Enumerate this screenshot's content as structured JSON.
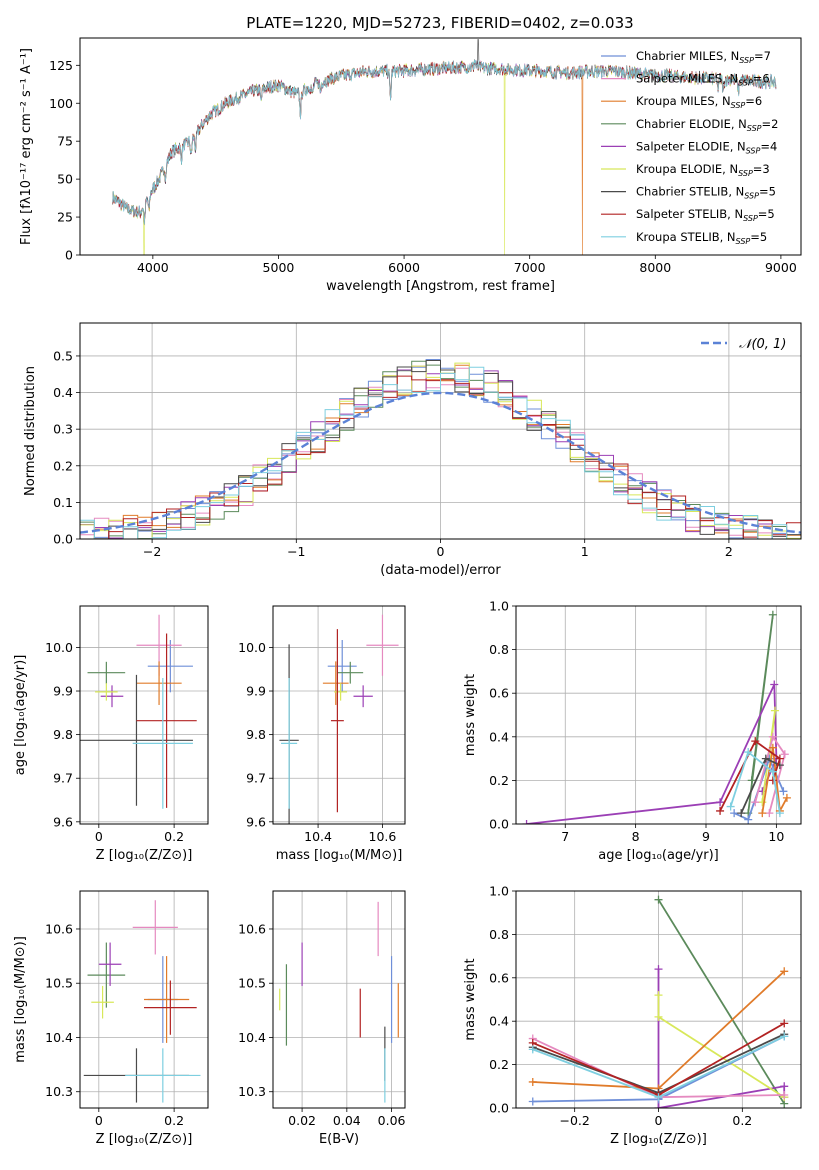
{
  "figure_title": "PLATE=1220, MJD=52723, FIBERID=0402, z=0.033",
  "colors": {
    "chabrier_miles": "#6f8fd8",
    "salpeter_miles": "#e58ac0",
    "kroupa_miles": "#e07b2a",
    "chabrier_elodie": "#5b8a5b",
    "salpeter_elodie": "#9b3fb5",
    "kroupa_elodie": "#d8e85a",
    "chabrier_stelib": "#4a4a4a",
    "salpeter_stelib": "#b22222",
    "kroupa_stelib": "#7ecfe0",
    "normal_curve": "#5b82d6"
  },
  "chart_data": [
    {
      "id": "spectrum",
      "type": "line",
      "xlabel": "wavelength [Angstrom, rest frame]",
      "ylabel": "Flux [fλ10⁻¹⁷ erg cm⁻² s⁻¹ A⁻¹]",
      "xlim": [
        3420,
        9160
      ],
      "ylim": [
        0,
        143
      ],
      "xticks": [
        4000,
        5000,
        6000,
        7000,
        8000,
        9000
      ],
      "yticks": [
        0,
        25,
        50,
        75,
        100,
        125
      ],
      "legend_position": "top-right",
      "legend": [
        "Chabrier MILES, N_SSP=7",
        "Salpeter MILES, N_SSP=6",
        "Kroupa MILES, N_SSP=6",
        "Chabrier ELODIE, N_SSP=2",
        "Salpeter ELODIE, N_SSP=4",
        "Kroupa ELODIE, N_SSP=3",
        "Chabrier STELIB, N_SSP=5",
        "Salpeter STELIB, N_SSP=5",
        "Kroupa STELIB, N_SSP=5"
      ],
      "continuum_anchors": [
        [
          3680,
          38
        ],
        [
          3800,
          30
        ],
        [
          3900,
          28
        ],
        [
          3960,
          38
        ],
        [
          4050,
          50
        ],
        [
          4150,
          68
        ],
        [
          4300,
          75
        ],
        [
          4450,
          92
        ],
        [
          4600,
          101
        ],
        [
          4800,
          108
        ],
        [
          5000,
          112
        ],
        [
          5150,
          106
        ],
        [
          5300,
          113
        ],
        [
          5500,
          118
        ],
        [
          5700,
          121
        ],
        [
          5900,
          121
        ],
        [
          6100,
          122
        ],
        [
          6300,
          123
        ],
        [
          6500,
          124
        ],
        [
          6700,
          123
        ],
        [
          6900,
          122
        ],
        [
          7100,
          121
        ],
        [
          7300,
          120
        ],
        [
          7500,
          121
        ],
        [
          7700,
          121
        ],
        [
          7900,
          119
        ],
        [
          8100,
          118
        ],
        [
          8300,
          117
        ],
        [
          8500,
          116
        ],
        [
          8700,
          115
        ],
        [
          8900,
          114
        ]
      ],
      "absorption_lines": [
        [
          3934,
          -12
        ],
        [
          3969,
          -10
        ],
        [
          4102,
          -8
        ],
        [
          4227,
          -8
        ],
        [
          4305,
          -10
        ],
        [
          4340,
          -10
        ],
        [
          4861,
          -8
        ],
        [
          5175,
          -14
        ],
        [
          5270,
          -6
        ],
        [
          5335,
          -6
        ],
        [
          5892,
          -18
        ],
        [
          6563,
          4
        ],
        [
          8498,
          -6
        ],
        [
          8542,
          -8
        ],
        [
          8662,
          -7
        ]
      ],
      "emission_spikes": [
        [
          6590,
          142
        ]
      ],
      "dropouts": [
        {
          "x": 3930,
          "series": "kroupa_elodie"
        },
        {
          "x": 6800,
          "series": "kroupa_elodie"
        },
        {
          "x": 7420,
          "series": "kroupa_miles"
        }
      ],
      "start_x": 3680,
      "end_x": 8960
    },
    {
      "id": "residual_hist",
      "type": "line",
      "xlabel": "(data-model)/error",
      "ylabel": "Normed distribution",
      "xlim": [
        -2.5,
        2.5
      ],
      "ylim": [
        0,
        0.59
      ],
      "xticks": [
        -2,
        -1,
        0,
        1,
        2
      ],
      "yticks": [
        0.0,
        0.1,
        0.2,
        0.3,
        0.4,
        0.5
      ],
      "legend_position": "top-right",
      "legend": [
        "𝒩(0, 1)"
      ],
      "bin_width": 0.1,
      "grid": true
    },
    {
      "id": "age_vs_Z",
      "type": "scatter",
      "xlabel": "Z [log₁₀(Z/Z⊙)]",
      "ylabel": "age  [log₁₀(age/yr)]",
      "xlim": [
        -0.05,
        0.29
      ],
      "ylim": [
        9.595,
        10.095
      ],
      "xticks": [
        0.0,
        0.2
      ],
      "yticks": [
        9.6,
        9.7,
        9.8,
        9.9,
        10.0
      ],
      "points": [
        {
          "series": "chabrier_miles",
          "x": 0.19,
          "y": 9.957,
          "xerr": 0.06,
          "yerr": 0.06
        },
        {
          "series": "salpeter_miles",
          "x": 0.16,
          "y": 10.005,
          "xerr": 0.06,
          "yerr": 0.07
        },
        {
          "series": "kroupa_miles",
          "x": 0.16,
          "y": 9.918,
          "xerr": 0.06,
          "yerr": 0.05
        },
        {
          "series": "chabrier_elodie",
          "x": 0.02,
          "y": 9.942,
          "xerr": 0.05,
          "yerr": 0.025
        },
        {
          "series": "salpeter_elodie",
          "x": 0.035,
          "y": 9.888,
          "xerr": 0.03,
          "yerr": 0.025
        },
        {
          "series": "kroupa_elodie",
          "x": 0.02,
          "y": 9.898,
          "xerr": 0.03,
          "yerr": 0.02
        },
        {
          "series": "chabrier_stelib",
          "x": 0.1,
          "y": 9.787,
          "xerr": 0.15,
          "yerr": 0.15
        },
        {
          "series": "salpeter_stelib",
          "x": 0.18,
          "y": 9.832,
          "xerr": 0.08,
          "yerr": 0.2
        },
        {
          "series": "kroupa_stelib",
          "x": 0.17,
          "y": 9.78,
          "xerr": 0.08,
          "yerr": 0.15
        }
      ]
    },
    {
      "id": "age_vs_mass",
      "type": "scatter",
      "xlabel": "mass [log₁₀(M/M⊙)]",
      "ylabel": "",
      "xlim": [
        10.26,
        10.67
      ],
      "ylim": [
        9.595,
        10.095
      ],
      "xticks": [
        10.4,
        10.6
      ],
      "yticks": [
        9.6,
        9.7,
        9.8,
        9.9,
        10.0
      ],
      "points": [
        {
          "series": "chabrier_miles",
          "x": 10.475,
          "y": 9.957,
          "xerr": 0.045,
          "yerr": 0.06
        },
        {
          "series": "salpeter_miles",
          "x": 10.6,
          "y": 10.005,
          "xerr": 0.05,
          "yerr": 0.07
        },
        {
          "series": "kroupa_miles",
          "x": 10.455,
          "y": 9.918,
          "xerr": 0.04,
          "yerr": 0.05
        },
        {
          "series": "chabrier_elodie",
          "x": 10.5,
          "y": 9.942,
          "xerr": 0.04,
          "yerr": 0.025
        },
        {
          "series": "salpeter_elodie",
          "x": 10.54,
          "y": 9.888,
          "xerr": 0.03,
          "yerr": 0.025
        },
        {
          "series": "kroupa_elodie",
          "x": 10.47,
          "y": 9.898,
          "xerr": 0.02,
          "yerr": 0.02
        },
        {
          "series": "chabrier_stelib",
          "x": 10.31,
          "y": 9.787,
          "xerr": 0.03,
          "yerr": 0.22
        },
        {
          "series": "salpeter_stelib",
          "x": 10.46,
          "y": 9.832,
          "xerr": 0.02,
          "yerr": 0.21
        },
        {
          "series": "kroupa_stelib",
          "x": 10.31,
          "y": 9.78,
          "xerr": 0.025,
          "yerr": 0.15
        }
      ]
    },
    {
      "id": "massweight_vs_age",
      "type": "line",
      "xlabel": "age  [log₁₀(age/yr)]",
      "ylabel": "mass weight",
      "xlim": [
        6.3,
        10.35
      ],
      "ylim": [
        0,
        1.0
      ],
      "xticks": [
        7,
        8,
        9,
        10
      ],
      "yticks": [
        0.0,
        0.2,
        0.4,
        0.6,
        0.8,
        1.0
      ],
      "series": [
        {
          "key": "chabrier_elodie",
          "x": [
            9.6,
            9.95,
            9.65
          ],
          "y": [
            0.05,
            0.96,
            0.2
          ]
        },
        {
          "key": "salpeter_elodie",
          "x": [
            6.45,
            9.2,
            9.97,
            10.0,
            9.8
          ],
          "y": [
            0.0,
            0.1,
            0.64,
            0.3,
            0.15
          ]
        },
        {
          "key": "kroupa_elodie",
          "x": [
            9.8,
            9.98,
            9.9
          ],
          "y": [
            0.1,
            0.52,
            0.3
          ]
        },
        {
          "key": "chabrier_miles",
          "x": [
            9.4,
            9.6,
            9.9,
            10.1
          ],
          "y": [
            0.05,
            0.02,
            0.3,
            0.15
          ]
        },
        {
          "key": "salpeter_miles",
          "x": [
            9.7,
            9.95,
            10.12,
            9.9
          ],
          "y": [
            0.1,
            0.4,
            0.32,
            0.05
          ]
        },
        {
          "key": "kroupa_miles",
          "x": [
            9.8,
            9.95,
            10.05,
            10.15
          ],
          "y": [
            0.05,
            0.35,
            0.06,
            0.12
          ]
        },
        {
          "key": "chabrier_stelib",
          "x": [
            9.5,
            9.85,
            10.05
          ],
          "y": [
            0.05,
            0.3,
            0.27
          ]
        },
        {
          "key": "salpeter_stelib",
          "x": [
            9.2,
            9.7,
            10.05,
            9.95
          ],
          "y": [
            0.06,
            0.38,
            0.3,
            0.2
          ]
        },
        {
          "key": "kroupa_stelib",
          "x": [
            9.35,
            9.6,
            9.95,
            10.05
          ],
          "y": [
            0.08,
            0.33,
            0.24,
            0.05
          ]
        }
      ]
    },
    {
      "id": "mass_vs_Z",
      "type": "scatter",
      "xlabel": "Z [log₁₀(Z/Z⊙)]",
      "ylabel": "mass [log₁₀(M/M⊙)]",
      "xlim": [
        -0.05,
        0.29
      ],
      "ylim": [
        10.27,
        10.67
      ],
      "xticks": [
        0.0,
        0.2
      ],
      "yticks": [
        10.3,
        10.4,
        10.5,
        10.6
      ],
      "points": [
        {
          "series": "chabrier_miles",
          "x": 0.17,
          "y": 10.47,
          "xerr": 0.04,
          "yerr": 0.08
        },
        {
          "series": "salpeter_miles",
          "x": 0.15,
          "y": 10.603,
          "xerr": 0.06,
          "yerr": 0.05
        },
        {
          "series": "kroupa_miles",
          "x": 0.18,
          "y": 10.47,
          "xerr": 0.06,
          "yerr": 0.08
        },
        {
          "series": "chabrier_elodie",
          "x": 0.02,
          "y": 10.515,
          "xerr": 0.05,
          "yerr": 0.06
        },
        {
          "series": "salpeter_elodie",
          "x": 0.03,
          "y": 10.535,
          "xerr": 0.03,
          "yerr": 0.04
        },
        {
          "series": "kroupa_elodie",
          "x": 0.01,
          "y": 10.465,
          "xerr": 0.03,
          "yerr": 0.03
        },
        {
          "series": "chabrier_stelib",
          "x": 0.1,
          "y": 10.33,
          "xerr": 0.14,
          "yerr": 0.05
        },
        {
          "series": "salpeter_stelib",
          "x": 0.19,
          "y": 10.455,
          "xerr": 0.07,
          "yerr": 0.05
        },
        {
          "series": "kroupa_stelib",
          "x": 0.17,
          "y": 10.33,
          "xerr": 0.1,
          "yerr": 0.05
        }
      ]
    },
    {
      "id": "mass_vs_ebv",
      "type": "scatter",
      "xlabel": "E(B-V)",
      "ylabel": "",
      "xlim": [
        0.007,
        0.066
      ],
      "ylim": [
        10.27,
        10.67
      ],
      "xticks": [
        0.02,
        0.04,
        0.06
      ],
      "yticks": [
        10.3,
        10.4,
        10.5,
        10.6
      ],
      "points": [
        {
          "series": "chabrier_miles",
          "x": 0.06,
          "y": 10.47,
          "xerr": 0,
          "yerr": 0.08
        },
        {
          "series": "salpeter_miles",
          "x": 0.054,
          "y": 10.6,
          "xerr": 0,
          "yerr": 0.05
        },
        {
          "series": "kroupa_miles",
          "x": 0.063,
          "y": 10.45,
          "xerr": 0,
          "yerr": 0.05
        },
        {
          "series": "chabrier_elodie",
          "x": 0.013,
          "y": 10.46,
          "xerr": 0,
          "yerr": 0.075
        },
        {
          "series": "salpeter_elodie",
          "x": 0.02,
          "y": 10.535,
          "xerr": 0,
          "yerr": 0.04
        },
        {
          "series": "kroupa_elodie",
          "x": 0.01,
          "y": 10.47,
          "xerr": 0,
          "yerr": 0.02
        },
        {
          "series": "chabrier_stelib",
          "x": 0.057,
          "y": 10.37,
          "xerr": 0,
          "yerr": 0.05
        },
        {
          "series": "salpeter_stelib",
          "x": 0.046,
          "y": 10.445,
          "xerr": 0,
          "yerr": 0.045
        },
        {
          "series": "kroupa_stelib",
          "x": 0.057,
          "y": 10.33,
          "xerr": 0,
          "yerr": 0.05
        }
      ]
    },
    {
      "id": "massweight_vs_Z",
      "type": "line",
      "xlabel": "Z [log₁₀(Z/Z⊙)]",
      "ylabel": "mass weight",
      "xlim": [
        -0.34,
        0.34
      ],
      "ylim": [
        0,
        1.0
      ],
      "xticks": [
        -0.2,
        0.0,
        0.2
      ],
      "yticks": [
        0.0,
        0.2,
        0.4,
        0.6,
        0.8,
        1.0
      ],
      "series": [
        {
          "key": "chabrier_elodie",
          "x": [
            0.0,
            0.3
          ],
          "y": [
            0.96,
            0.02
          ]
        },
        {
          "key": "salpeter_elodie",
          "x": [
            0.0,
            0.0,
            0.3,
            0.3
          ],
          "y": [
            0.64,
            0.0,
            0.1,
            0.05
          ]
        },
        {
          "key": "kroupa_elodie",
          "x": [
            0.0,
            0.0,
            0.3
          ],
          "y": [
            0.52,
            0.42,
            0.05
          ]
        },
        {
          "key": "chabrier_miles",
          "x": [
            -0.3,
            0.0,
            0.3
          ],
          "y": [
            0.03,
            0.04,
            0.33
          ]
        },
        {
          "key": "salpeter_miles",
          "x": [
            -0.3,
            0.0,
            0.3
          ],
          "y": [
            0.32,
            0.05,
            0.06
          ]
        },
        {
          "key": "kroupa_miles",
          "x": [
            -0.3,
            0.0,
            0.3
          ],
          "y": [
            0.12,
            0.09,
            0.63
          ]
        },
        {
          "key": "chabrier_stelib",
          "x": [
            -0.3,
            0.0,
            0.3
          ],
          "y": [
            0.28,
            0.07,
            0.34
          ]
        },
        {
          "key": "salpeter_stelib",
          "x": [
            -0.3,
            0.0,
            0.3
          ],
          "y": [
            0.3,
            0.06,
            0.39
          ]
        },
        {
          "key": "kroupa_stelib",
          "x": [
            -0.3,
            0.0,
            0.3
          ],
          "y": [
            0.27,
            0.05,
            0.33
          ]
        }
      ]
    }
  ]
}
